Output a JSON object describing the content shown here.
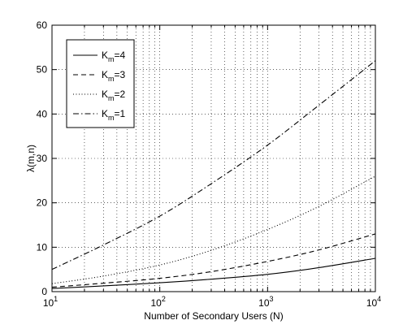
{
  "chart_data": {
    "type": "line",
    "xlabel": "Number of Secondary Users (N)",
    "ylabel": "λ(m,n)",
    "xscale": "log",
    "xlim": [
      10,
      10000
    ],
    "ylim": [
      0,
      60
    ],
    "xticks": [
      {
        "value": 10,
        "base": "10",
        "exp": "1"
      },
      {
        "value": 100,
        "base": "10",
        "exp": "2"
      },
      {
        "value": 1000,
        "base": "10",
        "exp": "3"
      },
      {
        "value": 10000,
        "base": "10",
        "exp": "4"
      }
    ],
    "yticks": [
      0,
      10,
      20,
      30,
      40,
      50,
      60
    ],
    "grid": true,
    "legend_position": "top-left",
    "series": [
      {
        "name_base": "K",
        "name_sub": "m",
        "name_rest": "=4",
        "style": "solid",
        "x": [
          10,
          30,
          100,
          300,
          1000,
          3000,
          10000
        ],
        "y": [
          0.7,
          1.3,
          2.0,
          2.8,
          3.9,
          5.4,
          7.5
        ]
      },
      {
        "name_base": "K",
        "name_sub": "m",
        "name_rest": "=3",
        "style": "dashed",
        "x": [
          10,
          30,
          100,
          300,
          1000,
          3000,
          10000
        ],
        "y": [
          1.0,
          1.9,
          3.0,
          4.5,
          6.8,
          9.4,
          13.0
        ]
      },
      {
        "name_base": "K",
        "name_sub": "m",
        "name_rest": "=2",
        "style": "dotted",
        "x": [
          10,
          30,
          100,
          300,
          1000,
          3000,
          10000
        ],
        "y": [
          1.8,
          3.5,
          6.0,
          9.3,
          14.0,
          19.2,
          26.0
        ]
      },
      {
        "name_base": "K",
        "name_sub": "m",
        "name_rest": "=1",
        "style": "dashdot",
        "x": [
          10,
          30,
          100,
          300,
          1000,
          3000,
          10000
        ],
        "y": [
          5.0,
          10.5,
          17.0,
          24.3,
          33.0,
          42.0,
          52.0
        ]
      }
    ]
  }
}
